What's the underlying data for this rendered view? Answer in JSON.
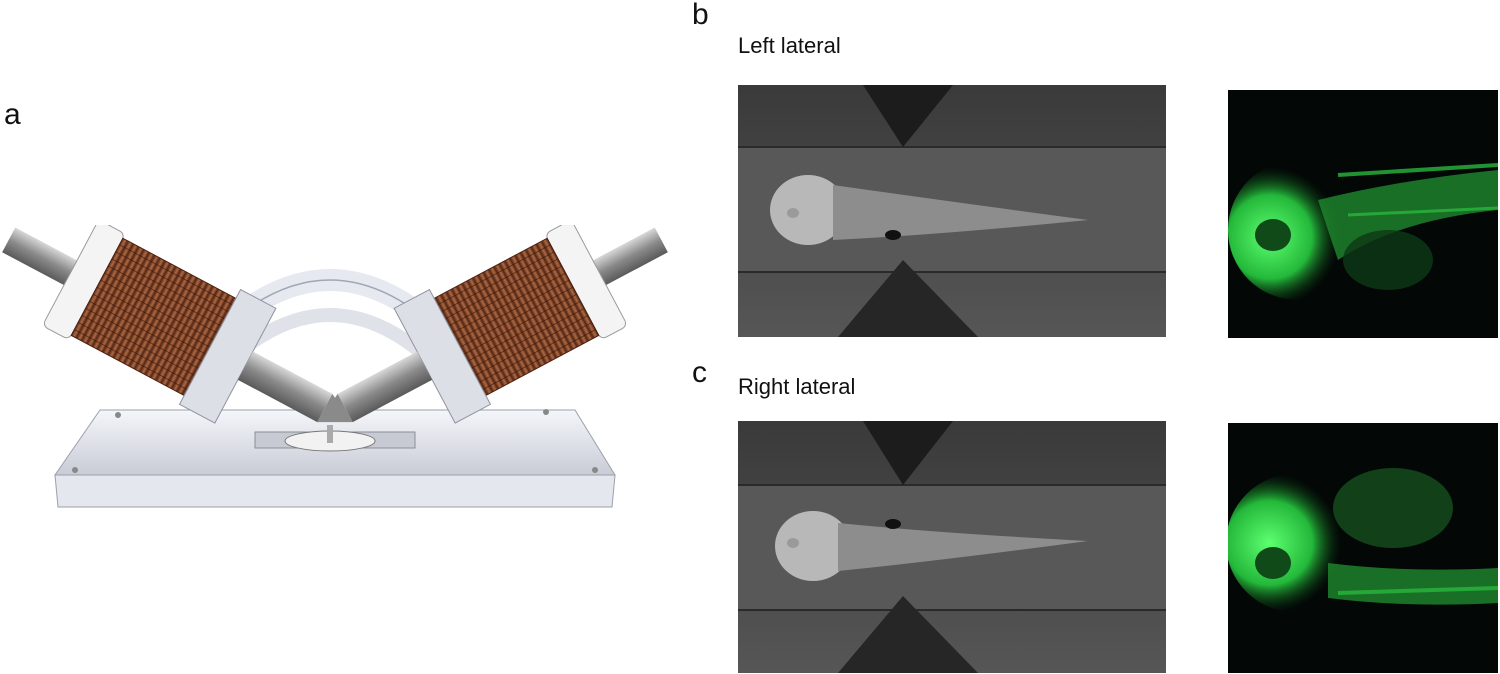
{
  "panels": {
    "a": {
      "letter": "a"
    },
    "b": {
      "letter": "b",
      "caption": "Left lateral"
    },
    "c": {
      "letter": "c",
      "caption": "Right lateral"
    }
  },
  "colors": {
    "background": "#ffffff",
    "coil_copper": "#8a4a2e",
    "brightfield_gray": "#4a4a4a",
    "fluorescence_green": "#3be05a",
    "fluorescence_bg": "#030806"
  },
  "images": {
    "device": "magnetic-rotation-device-render",
    "b_brightfield": "zebrafish-larva-brightfield-left-lateral",
    "b_fluorescence": "zebrafish-larva-gfp-left-lateral",
    "c_brightfield": "zebrafish-larva-brightfield-right-lateral",
    "c_fluorescence": "zebrafish-larva-gfp-right-lateral"
  }
}
